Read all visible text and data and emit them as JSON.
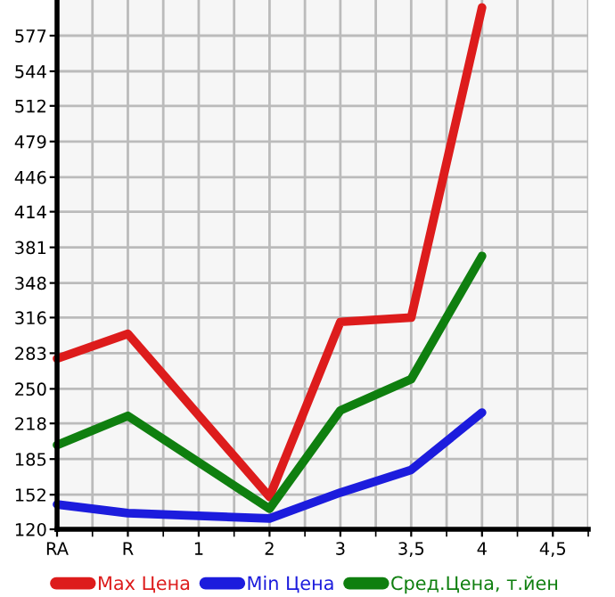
{
  "chart_data": {
    "type": "line",
    "categories": [
      "RA",
      "R",
      "1",
      "2",
      "3",
      "3,5",
      "4",
      "4,5"
    ],
    "ylim": [
      120,
      610
    ],
    "yticks": [
      120,
      152,
      185,
      218,
      250,
      283,
      316,
      348,
      381,
      414,
      446,
      479,
      512,
      544,
      577
    ],
    "grid": true,
    "legend": "bottom",
    "marker": "none",
    "line_style": "solid",
    "series": [
      {
        "name": "Max Цена",
        "color": "#dd1c1c",
        "values": [
          278,
          301,
          null,
          150,
          312,
          316,
          603,
          null
        ]
      },
      {
        "name": "Min Цена",
        "color": "#1c1cdd",
        "values": [
          143,
          135,
          null,
          130,
          154,
          175,
          228,
          null
        ]
      },
      {
        "name": "Сред.Цена, т.йен",
        "color": "#0f7f0f",
        "values": [
          198,
          225,
          null,
          139,
          230,
          259,
          373,
          null
        ]
      }
    ]
  }
}
